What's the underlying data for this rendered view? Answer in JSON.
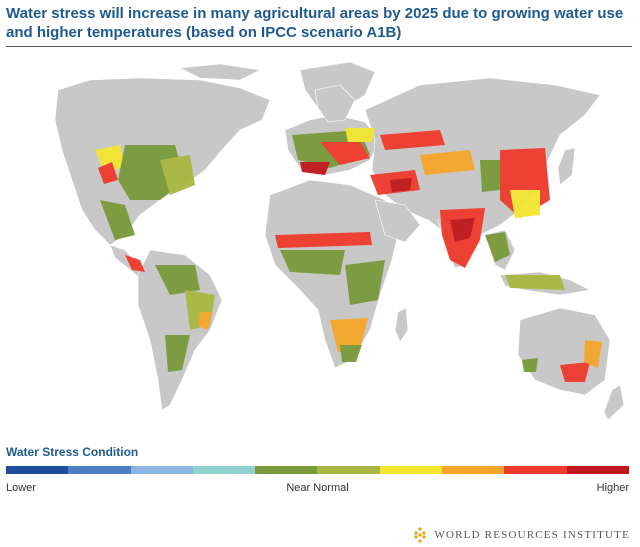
{
  "title": "Water stress will increase in many agricultural areas by 2025 due to growing water use and higher temperatures (based on IPCC scenario A1B)",
  "legend": {
    "title": "Water Stress Condition",
    "label_low": "Lower",
    "label_mid": "Near Normal",
    "label_high": "Higher",
    "colors": [
      "#1f4e9c",
      "#4a7fc4",
      "#8db4e2",
      "#8fd2cd",
      "#7a9a3a",
      "#a8b840",
      "#f2e630",
      "#f6a52a",
      "#ee3a2c",
      "#c0161c"
    ]
  },
  "map": {
    "land_color": "#c8c8c8",
    "background": "#ffffff"
  },
  "source": {
    "name": "WORLD RESOURCES INSTITUTE",
    "logo_icon": "wri-diamond-icon"
  }
}
